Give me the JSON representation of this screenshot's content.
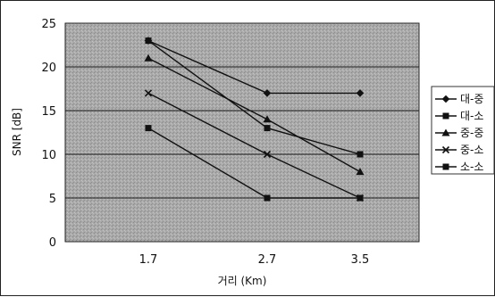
{
  "chart_data": {
    "type": "line",
    "xlabel": "거리 (Km)",
    "ylabel": "SNR [dB]",
    "x": [
      "1.7",
      "2.7",
      "3.5"
    ],
    "ylim": [
      0,
      25
    ],
    "yticks": [
      0,
      5,
      10,
      15,
      20,
      25
    ],
    "grid": true,
    "legend_position": "right",
    "plot_background": "#a8a8a8",
    "series": [
      {
        "name": "대-중",
        "marker": "diamond",
        "color": "#111111",
        "values": [
          23,
          17,
          17
        ]
      },
      {
        "name": "대-소",
        "marker": "square",
        "color": "#111111",
        "values": [
          23,
          13,
          10
        ]
      },
      {
        "name": "중-중",
        "marker": "triangle",
        "color": "#111111",
        "values": [
          21,
          14,
          8
        ]
      },
      {
        "name": "중-소",
        "marker": "x",
        "color": "#111111",
        "values": [
          17,
          10,
          5
        ]
      },
      {
        "name": "소-소",
        "marker": "square",
        "color": "#111111",
        "values": [
          13,
          5,
          5
        ]
      }
    ]
  }
}
